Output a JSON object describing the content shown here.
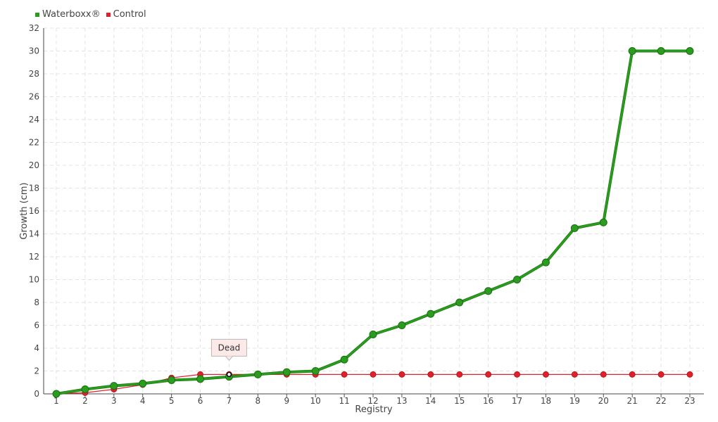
{
  "chart_data": {
    "type": "line",
    "xlabel": "Registry",
    "ylabel": "Growth (cm)",
    "categories": [
      "1",
      "2",
      "3",
      "4",
      "5",
      "6",
      "7",
      "8",
      "9",
      "10",
      "11",
      "12",
      "13",
      "14",
      "15",
      "16",
      "17",
      "18",
      "19",
      "20",
      "21",
      "22",
      "23"
    ],
    "ylim": [
      0,
      32
    ],
    "y_ticks": [
      0,
      2,
      4,
      6,
      8,
      10,
      12,
      14,
      16,
      18,
      20,
      22,
      24,
      26,
      28,
      30,
      32
    ],
    "grid": true,
    "legend_position": "top-left",
    "series": [
      {
        "name": "Waterboxx®",
        "color": "#2a9d1e",
        "values": [
          0,
          0.4,
          0.7,
          0.9,
          1.2,
          1.3,
          1.5,
          1.7,
          1.9,
          2.0,
          3.0,
          5.2,
          6.0,
          7.0,
          8.0,
          9.0,
          10.0,
          11.5,
          14.5,
          15.0,
          30.0,
          30.0,
          30.0
        ]
      },
      {
        "name": "Control",
        "color": "#e0202a",
        "values": [
          0,
          0.1,
          0.4,
          0.8,
          1.4,
          1.7,
          1.7,
          1.7,
          1.7,
          1.7,
          1.7,
          1.7,
          1.7,
          1.7,
          1.7,
          1.7,
          1.7,
          1.7,
          1.7,
          1.7,
          1.7,
          1.7,
          1.7
        ]
      }
    ],
    "annotations": [
      {
        "text": "Dead",
        "series": "Control",
        "category": "7"
      }
    ]
  }
}
